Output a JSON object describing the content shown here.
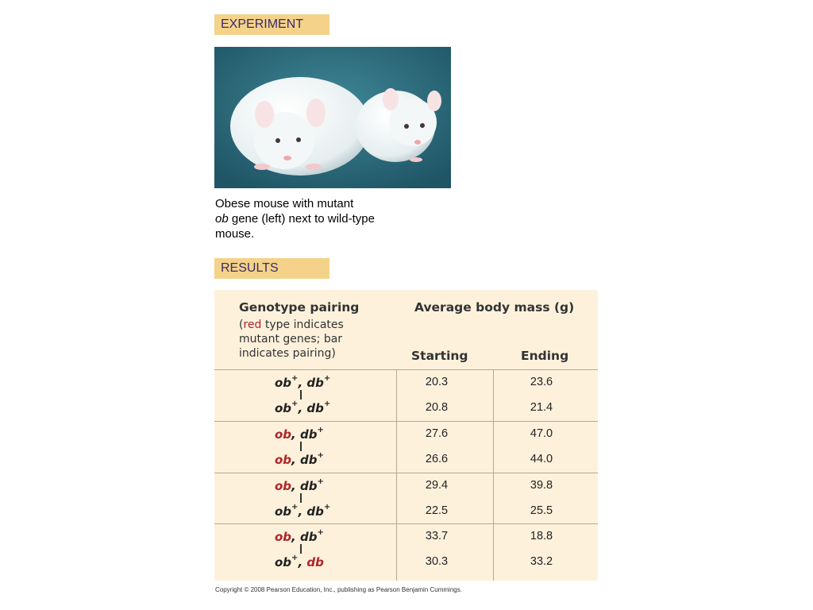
{
  "labels": {
    "experiment": "EXPERIMENT",
    "results": "RESULTS"
  },
  "caption": {
    "line1": "Obese mouse with mutant",
    "line2_italic": "ob",
    "line2_rest": " gene (left)  next to wild-type",
    "line3": "mouse."
  },
  "table": {
    "header": {
      "genotype_title": "Genotype pairing",
      "genotype_note_open": "(",
      "genotype_note_red": "red",
      "genotype_note_line1_rest": "  type indicates",
      "genotype_note_line2": "mutant genes; bar",
      "genotype_note_line3": "indicates pairing)",
      "mass_title": "Average body mass (g)",
      "starting": "Starting",
      "ending": "Ending"
    },
    "groups": [
      {
        "rows": [
          {
            "gene1": "ob",
            "gene1_sup": "+",
            "gene1_mutant": false,
            "gene2": "db",
            "gene2_sup": "+",
            "gene2_mutant": false,
            "starting": "20.3",
            "ending": "23.6"
          },
          {
            "gene1": "ob",
            "gene1_sup": "+",
            "gene1_mutant": false,
            "gene2": "db",
            "gene2_sup": "+",
            "gene2_mutant": false,
            "starting": "20.8",
            "ending": "21.4"
          }
        ]
      },
      {
        "rows": [
          {
            "gene1": "ob",
            "gene1_sup": "",
            "gene1_mutant": true,
            "gene2": "db",
            "gene2_sup": "+",
            "gene2_mutant": false,
            "starting": "27.6",
            "ending": "47.0"
          },
          {
            "gene1": "ob",
            "gene1_sup": "",
            "gene1_mutant": true,
            "gene2": "db",
            "gene2_sup": "+",
            "gene2_mutant": false,
            "starting": "26.6",
            "ending": "44.0"
          }
        ]
      },
      {
        "rows": [
          {
            "gene1": "ob",
            "gene1_sup": "",
            "gene1_mutant": true,
            "gene2": "db",
            "gene2_sup": "+",
            "gene2_mutant": false,
            "starting": "29.4",
            "ending": "39.8"
          },
          {
            "gene1": "ob",
            "gene1_sup": "+",
            "gene1_mutant": false,
            "gene2": "db",
            "gene2_sup": "+",
            "gene2_mutant": false,
            "starting": "22.5",
            "ending": "25.5"
          }
        ]
      },
      {
        "rows": [
          {
            "gene1": "ob",
            "gene1_sup": "",
            "gene1_mutant": true,
            "gene2": "db",
            "gene2_sup": "+",
            "gene2_mutant": false,
            "starting": "33.7",
            "ending": "18.8"
          },
          {
            "gene1": "ob",
            "gene1_sup": "+",
            "gene1_mutant": false,
            "gene2": "db",
            "gene2_sup": "",
            "gene2_mutant": true,
            "starting": "30.3",
            "ending": "33.2"
          }
        ]
      }
    ]
  },
  "copyright": "Copyright © 2008 Pearson Education, Inc., publishing as Pearson Benjamin Cummings.",
  "colors": {
    "label_bg": "#f4d28a",
    "table_bg": "#fdf1dc",
    "mutant_red": "#b0242a",
    "photo_bg": "#2e6f7e"
  },
  "image": {
    "description_icon": "mice-photo"
  }
}
